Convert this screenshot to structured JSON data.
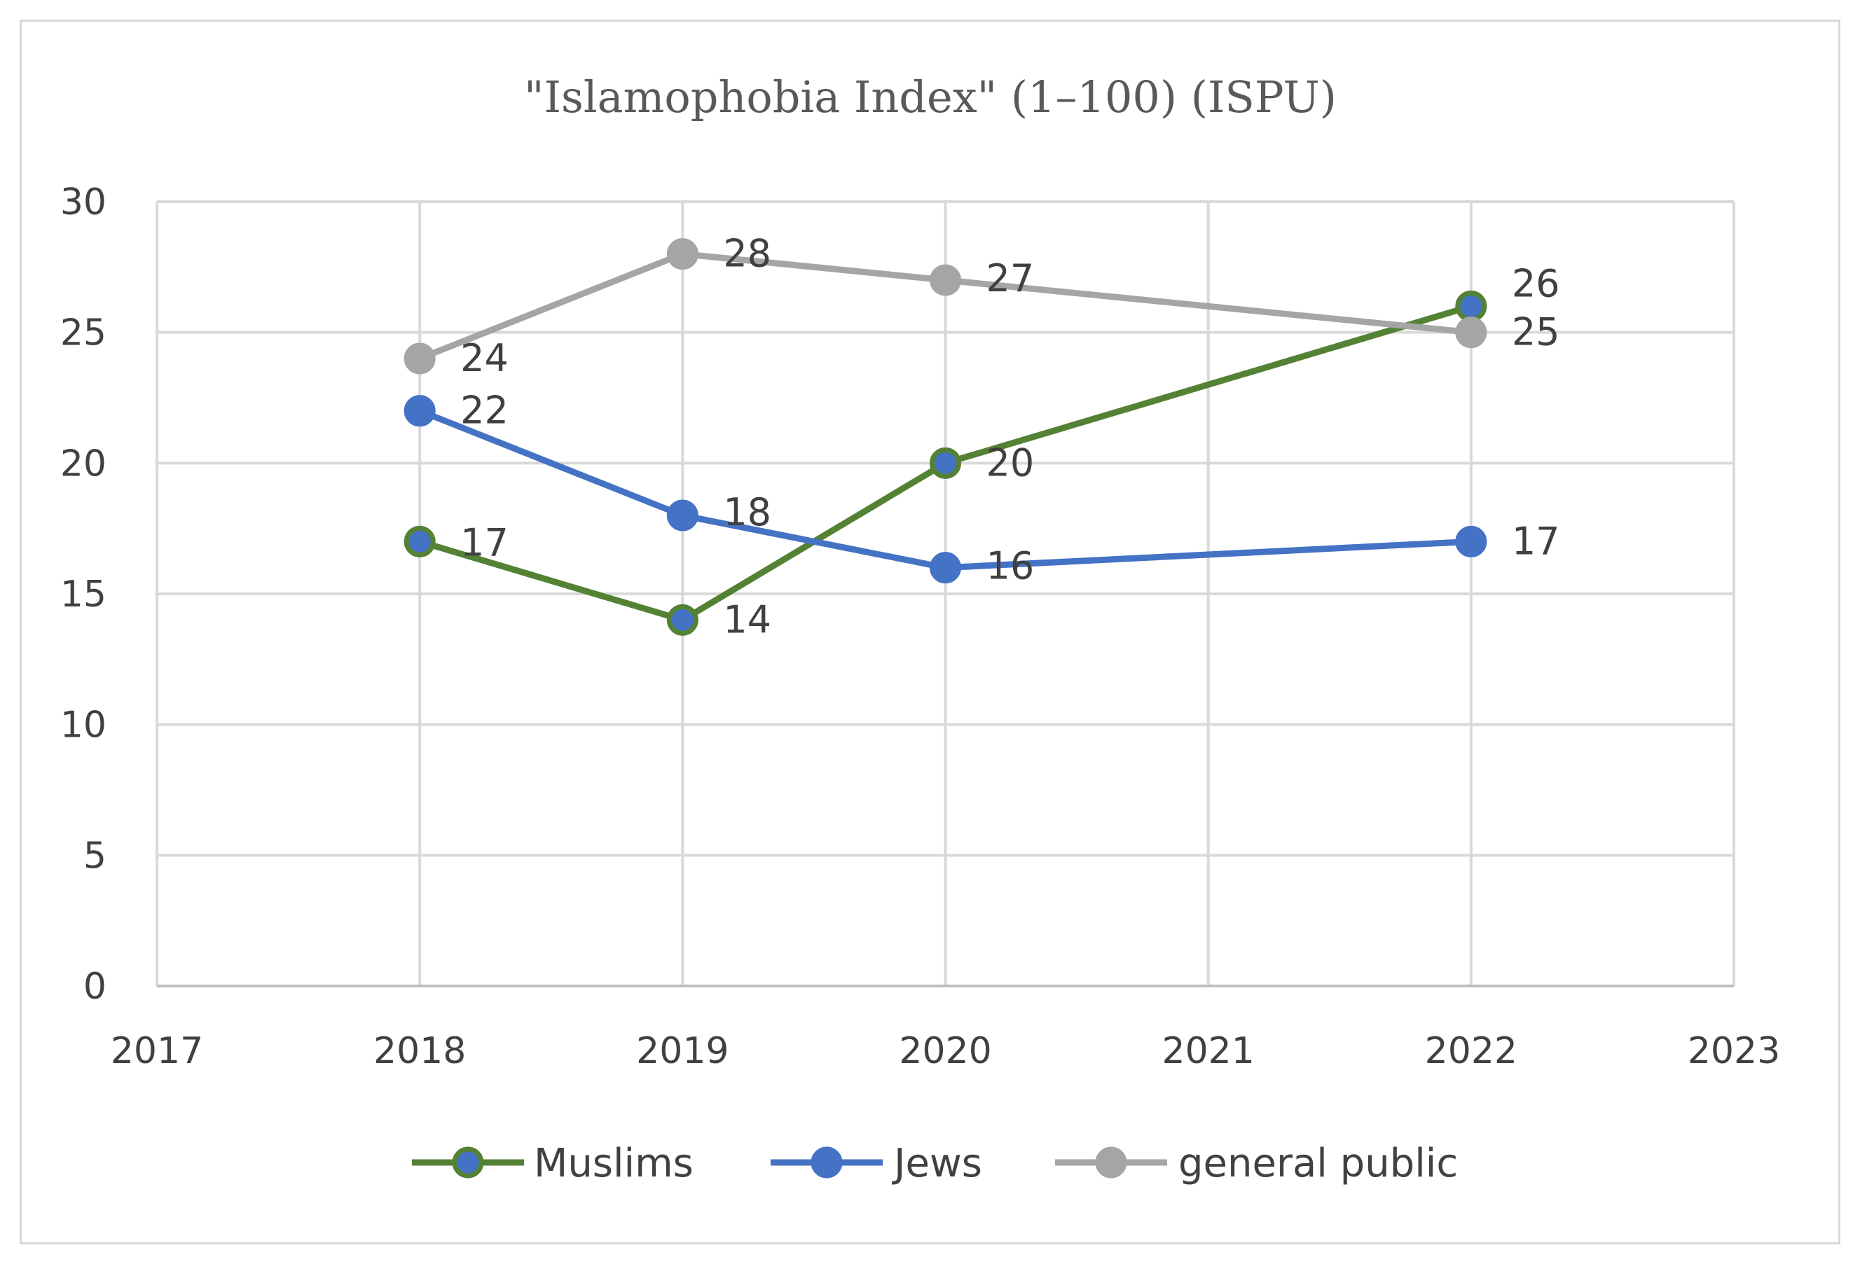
{
  "chart_data": {
    "type": "line",
    "title": "\"Islamophobia Index\" (1–100) (ISPU)",
    "xlabel": "",
    "ylabel": "",
    "xlim": [
      2017,
      2023
    ],
    "ylim": [
      0,
      30
    ],
    "x_ticks": [
      "2017",
      "2018",
      "2019",
      "2020",
      "2021",
      "2022",
      "2023"
    ],
    "y_ticks": [
      "0",
      "5",
      "10",
      "15",
      "20",
      "25",
      "30"
    ],
    "grid": true,
    "legend_position": "bottom",
    "series": [
      {
        "name": "Muslims",
        "color": "#548235",
        "marker_color": "#4472c4",
        "x": [
          2018,
          2019,
          2020,
          2022
        ],
        "values": [
          17,
          14,
          20,
          26
        ],
        "labels": [
          "17",
          "14",
          "20",
          "26"
        ]
      },
      {
        "name": "Jews",
        "color": "#4472c4",
        "marker_color": "#4472c4",
        "x": [
          2018,
          2019,
          2020,
          2022
        ],
        "values": [
          22,
          18,
          16,
          17
        ],
        "labels": [
          "22",
          "18",
          "16",
          "17"
        ]
      },
      {
        "name": "general public",
        "color": "#a5a5a5",
        "marker_color": "#a5a5a5",
        "x": [
          2018,
          2019,
          2020,
          2022
        ],
        "values": [
          24,
          28,
          27,
          25
        ],
        "labels": [
          "24",
          "28",
          "27",
          "25"
        ]
      }
    ]
  }
}
